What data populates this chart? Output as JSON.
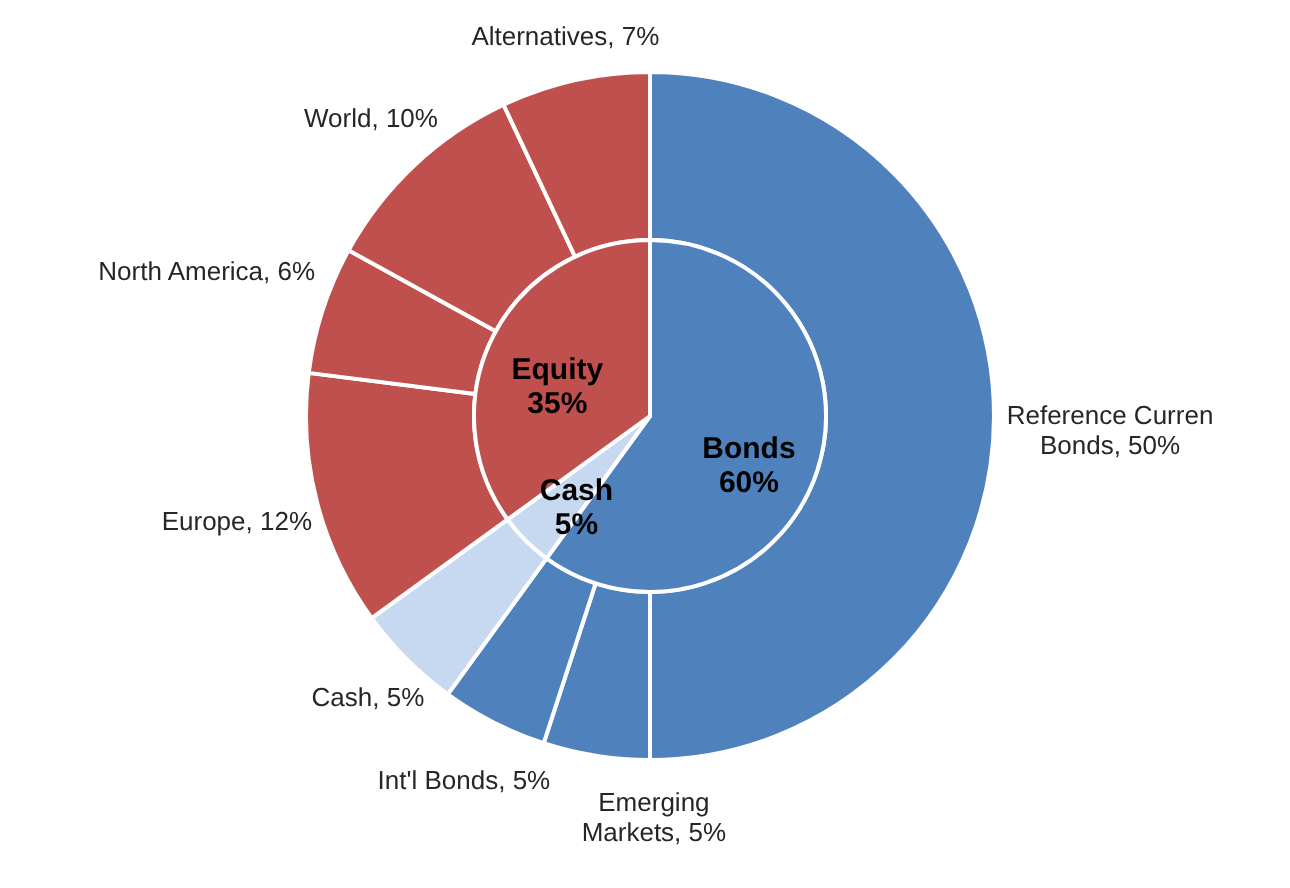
{
  "chart_data": [
    {
      "type": "pie",
      "categories": [
        "Bonds",
        "Cash",
        "Equity"
      ],
      "values": [
        60,
        5,
        35
      ],
      "value_labels": [
        "60%",
        "5%",
        "35%"
      ],
      "colors": [
        "#4f81bd",
        "#c6d9f1",
        "#c0504d"
      ]
    },
    {
      "type": "donut",
      "categories": [
        "Reference Curren Bonds",
        "Emerging Markets",
        "Int'l Bonds",
        "Cash",
        "Europe",
        "North America",
        "World",
        "Alternatives"
      ],
      "values": [
        50,
        5,
        5,
        5,
        12,
        6,
        10,
        7
      ],
      "value_labels": [
        "50%",
        "5%",
        "5%",
        "5%",
        "12%",
        "6%",
        "10%",
        "7%"
      ],
      "colors": [
        "#4f81bd",
        "#4f81bd",
        "#4f81bd",
        "#c6d9f1",
        "#c0504d",
        "#c0504d",
        "#c0504d",
        "#c0504d"
      ]
    }
  ]
}
